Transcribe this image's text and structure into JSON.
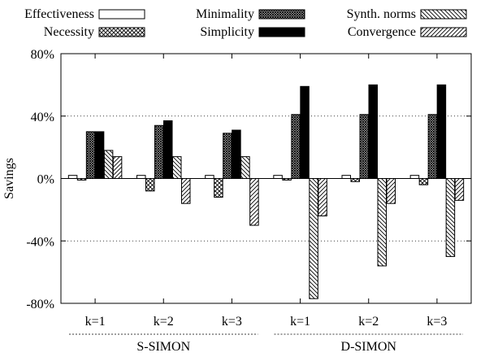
{
  "chart_data": {
    "type": "bar",
    "ylabel": "Savings",
    "ylim": [
      -80,
      80
    ],
    "yticks": [
      -80,
      -40,
      0,
      40,
      80
    ],
    "ytick_labels": [
      "-80%",
      "-40%",
      "0%",
      "40%",
      "80%"
    ],
    "grid": "horizontal dotted",
    "legend_position": "top",
    "categories": [
      "k=1",
      "k=2",
      "k=3",
      "k=1",
      "k=2",
      "k=3"
    ],
    "groups": [
      {
        "label": "S-SIMON",
        "category_indices": [
          0,
          1,
          2
        ]
      },
      {
        "label": "D-SIMON",
        "category_indices": [
          3,
          4,
          5
        ]
      }
    ],
    "series": [
      {
        "name": "Effectiveness",
        "pattern": "white",
        "values": [
          2,
          2,
          2,
          2,
          2,
          2
        ]
      },
      {
        "name": "Necessity",
        "pattern": "crosshatch",
        "values": [
          -1,
          -8,
          -12,
          -1,
          -2,
          -4
        ]
      },
      {
        "name": "Minimality",
        "pattern": "dense-checker",
        "values": [
          30,
          34,
          29,
          41,
          41,
          41
        ]
      },
      {
        "name": "Simplicity",
        "pattern": "black",
        "values": [
          30,
          37,
          31,
          59,
          60,
          60
        ]
      },
      {
        "name": "Synth. norms",
        "pattern": "backslash",
        "values": [
          18,
          14,
          14,
          -77,
          -56,
          -50
        ]
      },
      {
        "name": "Convergence",
        "pattern": "forwardslash",
        "values": [
          14,
          -16,
          -30,
          -24,
          -16,
          -14
        ]
      }
    ]
  }
}
